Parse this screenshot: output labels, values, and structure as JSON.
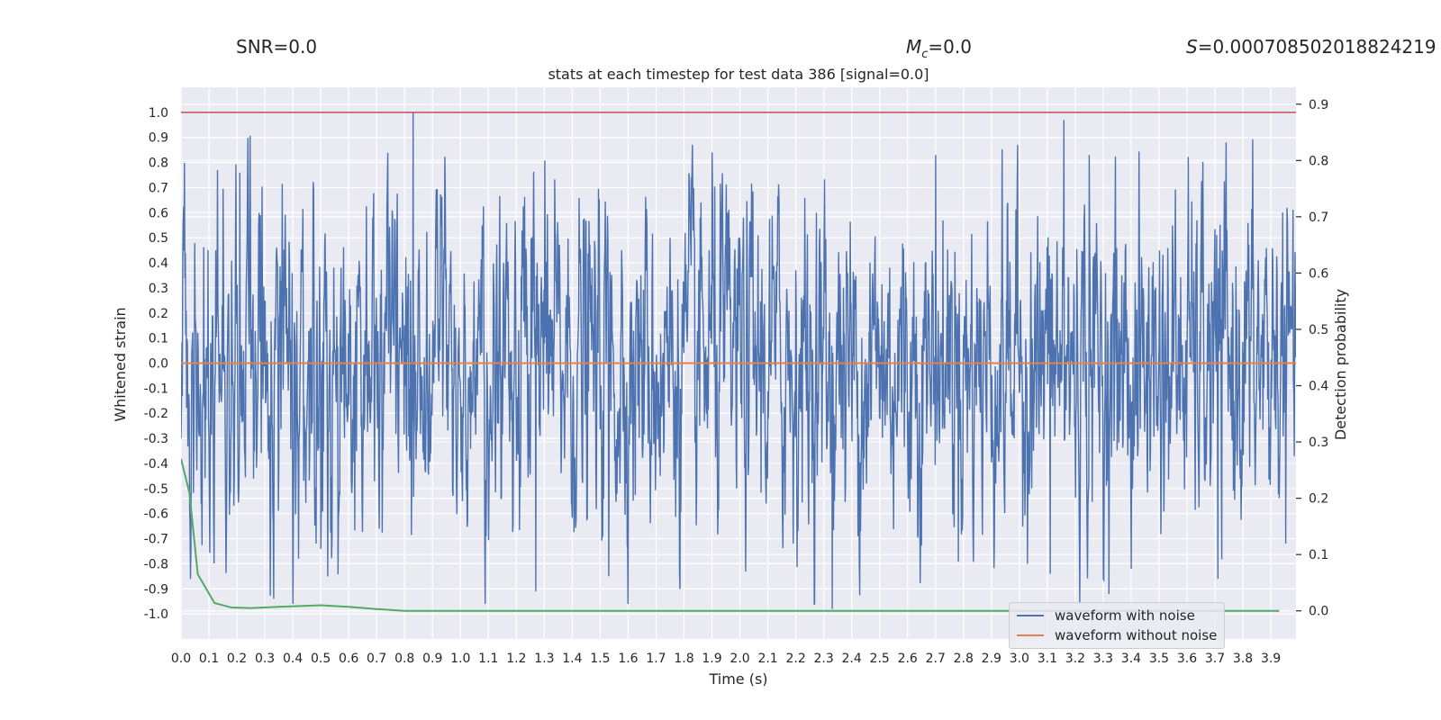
{
  "header": {
    "snr": "SNR=0.0",
    "mc_symbol": "M",
    "mc_sub": "c",
    "mc_value": "=0.0",
    "s_symbol": "S",
    "s_value": "=0.000708502018824219"
  },
  "colors": {
    "noise": "#4c72b0",
    "clean": "#dd8452",
    "prob": "#55a868",
    "threshold": "#c44e52",
    "axes_bg": "#eaeaf2",
    "grid": "#ffffff",
    "text": "#262626"
  },
  "chart_data": {
    "type": "line",
    "title": "stats at each timestep for test data 386 [signal=0.0]",
    "xlabel": "Time (s)",
    "ylabel": "Whitened strain",
    "y2label": "Detection probability",
    "xlim": [
      0.0,
      3.99
    ],
    "ylim": [
      -1.1,
      1.1
    ],
    "y2lim": [
      -0.05,
      0.93
    ],
    "xticks": [
      "0.0",
      "0.1",
      "0.2",
      "0.3",
      "0.4",
      "0.5",
      "0.6",
      "0.7",
      "0.8",
      "0.9",
      "1.0",
      "1.1",
      "1.2",
      "1.3",
      "1.4",
      "1.5",
      "1.6",
      "1.7",
      "1.8",
      "1.9",
      "2.0",
      "2.1",
      "2.2",
      "2.3",
      "2.4",
      "2.5",
      "2.6",
      "2.7",
      "2.8",
      "2.9",
      "3.0",
      "3.1",
      "3.2",
      "3.3",
      "3.4",
      "3.5",
      "3.6",
      "3.7",
      "3.8",
      "3.9"
    ],
    "yticks": [
      "1.0",
      "0.9",
      "0.8",
      "0.7",
      "0.6",
      "0.5",
      "0.4",
      "0.3",
      "0.2",
      "0.1",
      "0.0",
      "-0.1",
      "-0.2",
      "-0.3",
      "-0.4",
      "-0.5",
      "-0.6",
      "-0.7",
      "-0.8",
      "-0.9",
      "-1.0"
    ],
    "y2ticks": [
      "0.9",
      "0.8",
      "0.7",
      "0.6",
      "0.5",
      "0.4",
      "0.3",
      "0.2",
      "0.1",
      "0.0"
    ],
    "threshold": {
      "value": 1.0,
      "axis": "y"
    },
    "series": [
      {
        "name": "waveform with noise",
        "axis": "y",
        "sample_rate": 2048,
        "amplitude_envelope": 0.37,
        "peaks": [
          {
            "x": 0.83,
            "y": 1.0
          },
          {
            "x": 3.16,
            "y": 0.97
          },
          {
            "x": 3.74,
            "y": 0.88
          },
          {
            "x": 1.9,
            "y": 0.84
          },
          {
            "x": 2.7,
            "y": 0.83
          },
          {
            "x": 3.25,
            "y": 0.83
          },
          {
            "x": 0.13,
            "y": 0.77
          },
          {
            "x": 0.21,
            "y": 0.76
          },
          {
            "x": 2.33,
            "y": -0.98
          },
          {
            "x": 1.27,
            "y": -0.91
          },
          {
            "x": 3.71,
            "y": -0.86
          },
          {
            "x": 1.53,
            "y": -0.85
          },
          {
            "x": 3.11,
            "y": -0.84
          },
          {
            "x": 3.4,
            "y": -0.82
          },
          {
            "x": 0.42,
            "y": -0.78
          },
          {
            "x": 0.5,
            "y": -0.74
          }
        ]
      },
      {
        "name": "waveform without noise",
        "axis": "y",
        "x": [
          0.0,
          3.99
        ],
        "y": [
          0.0,
          0.0
        ]
      },
      {
        "name": "detection probability",
        "axis": "y2",
        "x": [
          0.0,
          0.03,
          0.06,
          0.12,
          0.18,
          0.25,
          0.35,
          0.45,
          0.5,
          0.6,
          0.7,
          0.8,
          1.0,
          1.5,
          2.0,
          2.5,
          3.0,
          3.5,
          3.93
        ],
        "y": [
          0.27,
          0.21,
          0.065,
          0.014,
          0.006,
          0.005,
          0.007,
          0.009,
          0.01,
          0.007,
          0.003,
          0.0,
          0.0,
          0.0,
          0.0,
          0.0,
          0.0,
          0.0,
          0.0
        ]
      }
    ],
    "legend": {
      "position": "lower-right",
      "entries": [
        "waveform with noise",
        "waveform without noise"
      ]
    }
  }
}
